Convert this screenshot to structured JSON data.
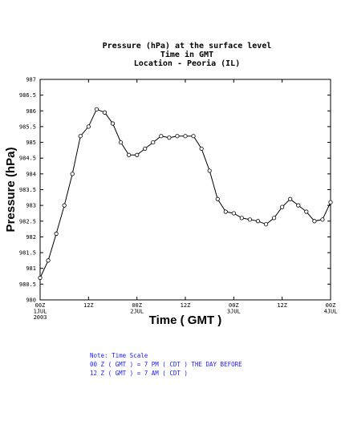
{
  "chart_data": {
    "type": "line",
    "title": "Pressure (hPa) at the surface level",
    "subtitle_lines": [
      "Time in GMT",
      "Location - Peoria (IL)"
    ],
    "xlabel": "Time ( GMT )",
    "ylabel": "Pressure (hPa)",
    "ylim": [
      980,
      987
    ],
    "yticks": [
      "980",
      "980.5",
      "981",
      "981.5",
      "982",
      "982.5",
      "983",
      "983.5",
      "984",
      "984.5",
      "985",
      "985.5",
      "986",
      "986.5",
      "987"
    ],
    "xlim": [
      0,
      72
    ],
    "xticks": [
      {
        "x": 0,
        "lines": [
          "00Z",
          "1JUL",
          "2003"
        ]
      },
      {
        "x": 12,
        "lines": [
          "12Z"
        ]
      },
      {
        "x": 24,
        "lines": [
          "00Z",
          "2JUL"
        ]
      },
      {
        "x": 36,
        "lines": [
          "12Z"
        ]
      },
      {
        "x": 48,
        "lines": [
          "00Z",
          "3JUL"
        ]
      },
      {
        "x": 60,
        "lines": [
          "12Z"
        ]
      },
      {
        "x": 72,
        "lines": [
          "00Z",
          "4JUL"
        ]
      }
    ],
    "grid": false,
    "marker": "open-circle",
    "series": [
      {
        "x": [
          0,
          2,
          4,
          6,
          8,
          10,
          12,
          14,
          16,
          18,
          20,
          22,
          24,
          26,
          28,
          30,
          32,
          34,
          36,
          38,
          40,
          42,
          44,
          46,
          48,
          50,
          52,
          54,
          56,
          58,
          60,
          62,
          64,
          66,
          68,
          70,
          72
        ],
        "values": [
          980.7,
          981.25,
          982.1,
          983.0,
          984.0,
          985.2,
          985.5,
          986.05,
          985.95,
          985.6,
          985.0,
          984.6,
          984.6,
          984.8,
          985.0,
          985.2,
          985.15,
          985.2,
          985.2,
          985.2,
          984.8,
          984.1,
          983.2,
          982.8,
          982.75,
          982.6,
          982.55,
          982.5,
          982.4,
          982.6,
          982.95,
          983.2,
          983.0,
          982.8,
          982.5,
          982.55,
          983.1
        ]
      }
    ]
  },
  "note": {
    "lines": [
      "Note: Time Scale",
      "00 Z ( GMT ) = 7 PM ( CDT ) THE DAY BEFORE",
      "12 Z ( GMT ) = 7 AM ( CDT )"
    ],
    "color": "#1a1aff"
  }
}
